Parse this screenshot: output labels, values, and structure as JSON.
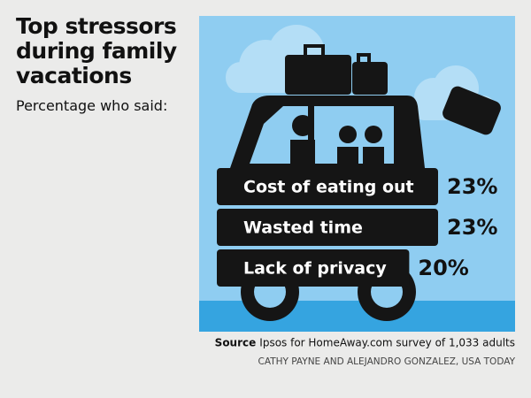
{
  "chart_data": {
    "type": "bar",
    "orientation": "horizontal",
    "title": "Top stressors during family vacations",
    "subtitle": "Percentage who said:",
    "categories": [
      "Cost of eating out",
      "Wasted time",
      "Lack of privacy"
    ],
    "values": [
      23,
      23,
      20
    ],
    "value_labels": [
      "23%",
      "23%",
      "20%"
    ],
    "color": "#151515",
    "source_label": "Source",
    "source": "Ipsos for HomeAway.com survey of 1,033 adults",
    "credit": "CATHY PAYNE AND ALEJANDRO GONZALEZ, USA TODAY"
  }
}
